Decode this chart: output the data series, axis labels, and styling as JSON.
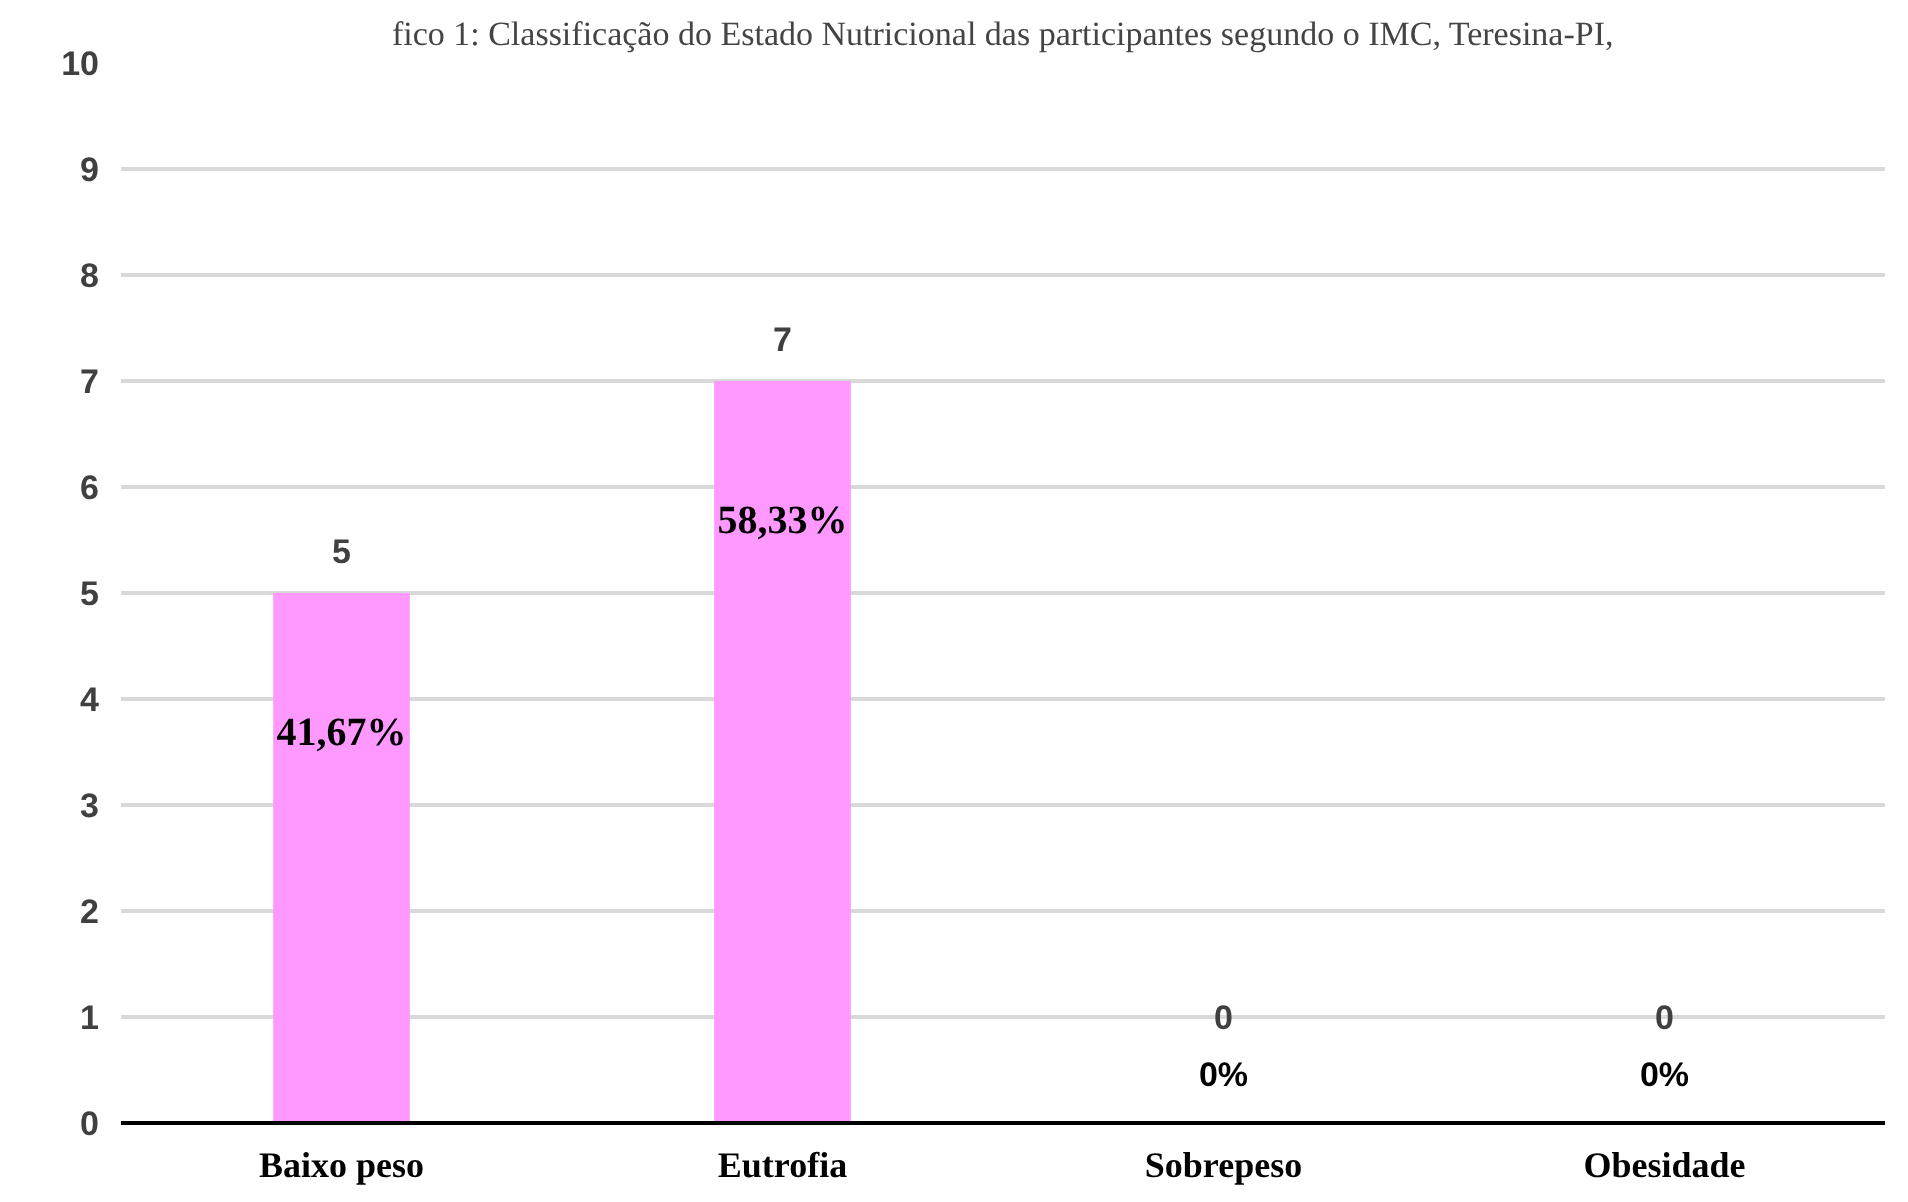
{
  "chart_data": {
    "type": "bar",
    "title": "fico 1: Classificação do Estado Nutricional das participantes segundo o IMC, Teresina-PI,",
    "categories": [
      "Baixo peso",
      "Eutrofia",
      "Sobrepeso",
      "Obesidade"
    ],
    "values": [
      5,
      7,
      0,
      0
    ],
    "color": "#ff99ff",
    "data_labels": true,
    "ylim": [
      0,
      10
    ],
    "yticks": [
      0,
      1,
      2,
      3,
      4,
      5,
      6,
      7,
      8,
      9,
      10
    ],
    "grid": "y",
    "annotations": [
      "41,67%",
      "58,33%",
      "0%",
      "0%"
    ]
  }
}
